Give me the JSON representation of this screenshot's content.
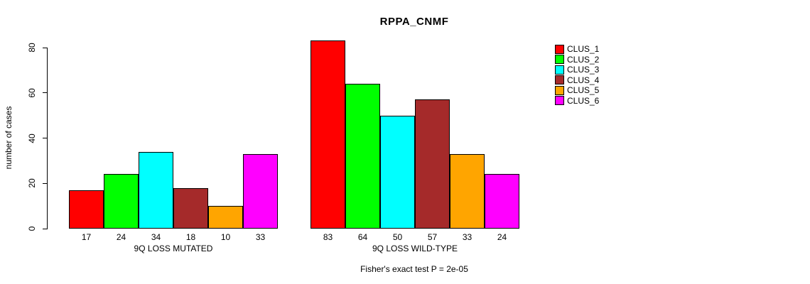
{
  "chart_data": {
    "type": "bar",
    "title": "RPPA_CNMF",
    "ylabel": "number of cases",
    "ylim": [
      0,
      80
    ],
    "yticks": [
      0,
      20,
      40,
      60,
      80
    ],
    "grid": false,
    "legend_position": "right",
    "series": [
      {
        "name": "CLUS_1",
        "color": "#ff0000"
      },
      {
        "name": "CLUS_2",
        "color": "#00ff00"
      },
      {
        "name": "CLUS_3",
        "color": "#00ffff"
      },
      {
        "name": "CLUS_4",
        "color": "#a52a2a"
      },
      {
        "name": "CLUS_5",
        "color": "#ffa500"
      },
      {
        "name": "CLUS_6",
        "color": "#ff00ff"
      }
    ],
    "groups": [
      {
        "label": "9Q LOSS MUTATED",
        "values": [
          17,
          24,
          34,
          18,
          10,
          33
        ]
      },
      {
        "label": "9Q LOSS WILD-TYPE",
        "values": [
          83,
          64,
          50,
          57,
          33,
          24
        ]
      }
    ],
    "annotation": "Fisher's exact test P = 2e-05"
  }
}
